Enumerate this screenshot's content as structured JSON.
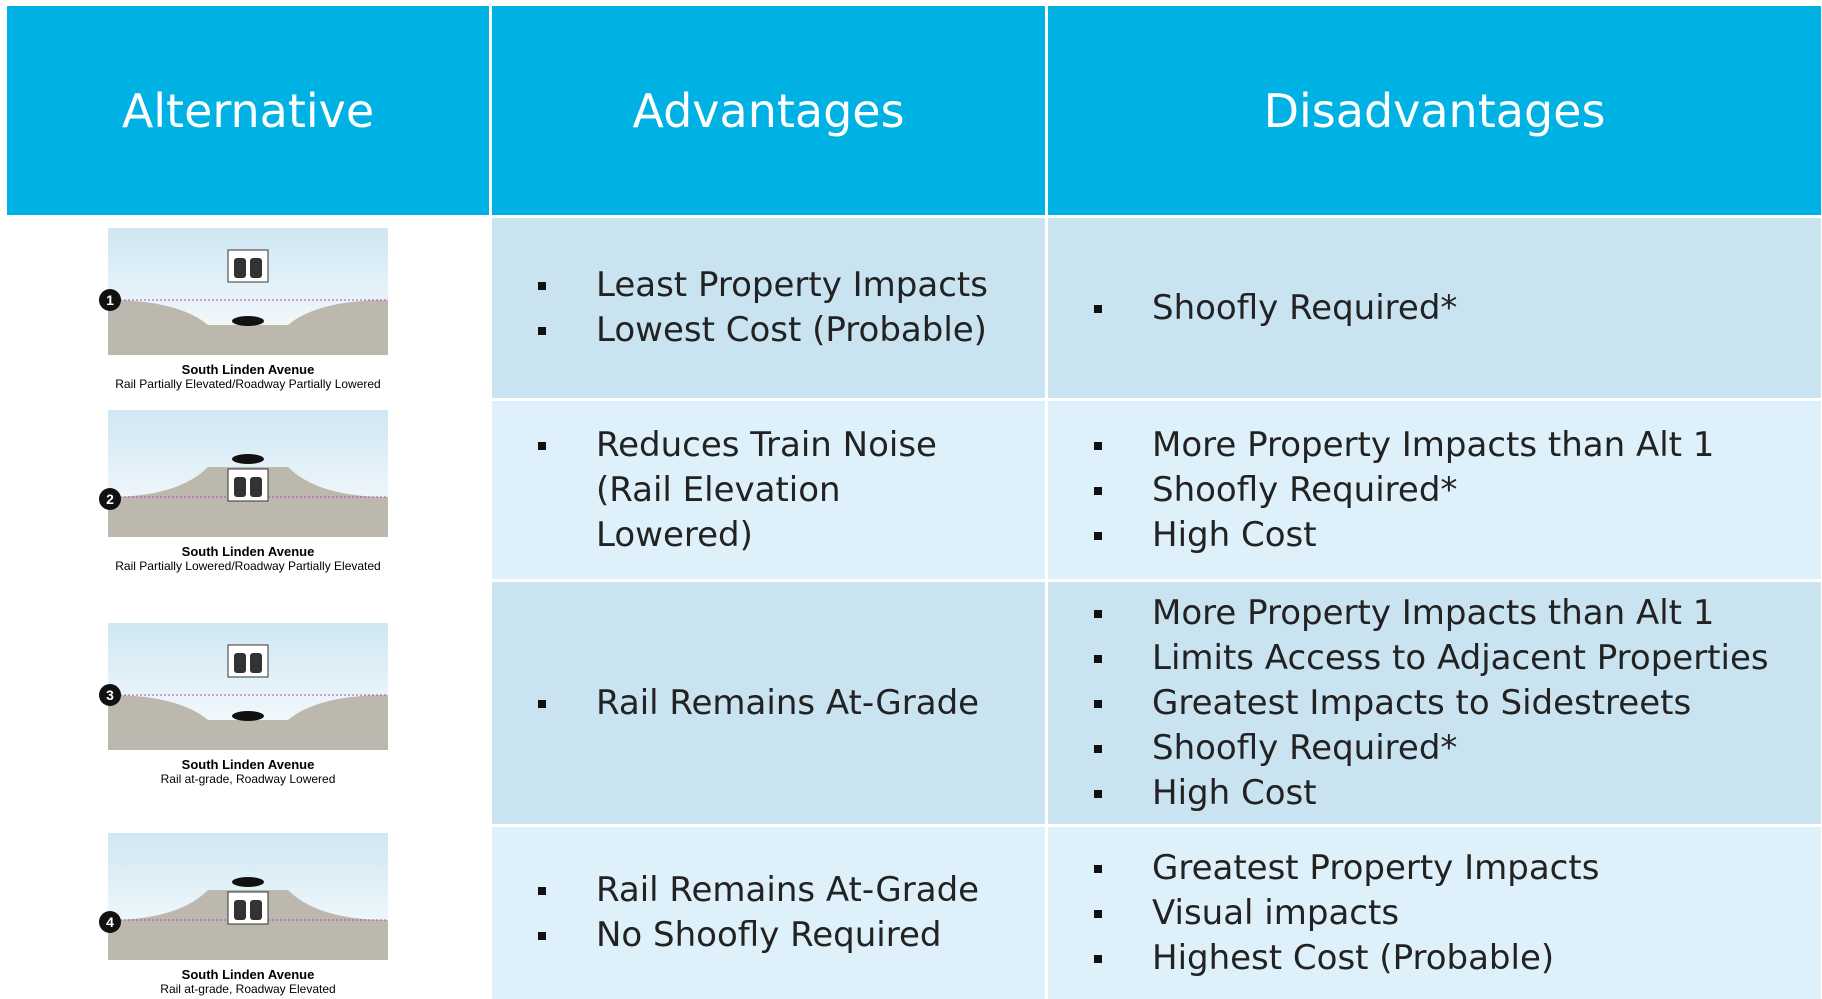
{
  "table": {
    "headers": [
      "Alternative",
      "Advantages",
      "Disadvantages"
    ],
    "rows": [
      {
        "number": "1",
        "caption_title": "South Linden Avenue",
        "caption_subtitle": "Rail Partially Elevated/Roadway Partially Lowered",
        "advantages": [
          "Least Property Impacts",
          "Lowest Cost (Probable)"
        ],
        "disadvantages": [
          "Shoofly Required*"
        ]
      },
      {
        "number": "2",
        "caption_title": "South Linden Avenue",
        "caption_subtitle": "Rail Partially Lowered/Roadway Partially Elevated",
        "advantages": [
          "Reduces Train Noise (Rail Elevation Lowered)"
        ],
        "disadvantages": [
          "More Property Impacts than Alt 1",
          "Shoofly Required*",
          "High Cost"
        ]
      },
      {
        "number": "3",
        "caption_title": "South Linden Avenue",
        "caption_subtitle": "Rail at-grade, Roadway Lowered",
        "advantages": [
          "Rail Remains At-Grade"
        ],
        "disadvantages": [
          "More Property Impacts than Alt 1",
          "Limits Access to Adjacent Properties",
          "Greatest Impacts to Sidestreets",
          "Shoofly Required*",
          "High Cost"
        ]
      },
      {
        "number": "4",
        "caption_title": "South Linden Avenue",
        "caption_subtitle": "Rail at-grade, Roadway Elevated",
        "advantages": [
          "Rail Remains At-Grade",
          "No Shoofly Required"
        ],
        "disadvantages": [
          "Greatest Property Impacts",
          "Visual impacts",
          "Highest Cost (Probable)"
        ]
      }
    ]
  }
}
